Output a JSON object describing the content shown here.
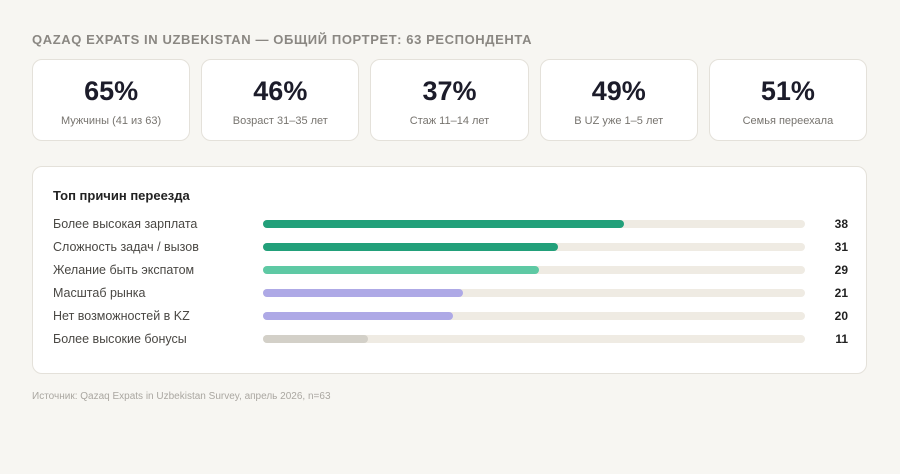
{
  "header": {
    "title": "QAZAQ EXPATS IN UZBEKISTAN — ОБЩИЙ ПОРТРЕТ: 63 РЕСПОНДЕНТА"
  },
  "stats": [
    {
      "value": "65%",
      "label": "Мужчины (41 из 63)"
    },
    {
      "value": "46%",
      "label": "Возраст 31–35 лет"
    },
    {
      "value": "37%",
      "label": "Стаж 11–14 лет"
    },
    {
      "value": "49%",
      "label": "В UZ уже 1–5 лет"
    },
    {
      "value": "51%",
      "label": "Семья переехала"
    }
  ],
  "chart_data": {
    "type": "bar",
    "orientation": "horizontal",
    "title": "Топ причин переезда",
    "categories": [
      "Более высокая зарплата",
      "Сложность задач / вызов",
      "Желание быть экспатом",
      "Масштаб рынка",
      "Нет возможностей в KZ",
      "Более высокие бонусы"
    ],
    "values": [
      38,
      31,
      29,
      21,
      20,
      11
    ],
    "value_labels": [
      "38",
      "31",
      "29",
      "21",
      "20",
      "11"
    ],
    "colors": [
      "#22a07a",
      "#22a07a",
      "#5ec9a4",
      "#aea9e6",
      "#aea9e6",
      "#d3d0c8"
    ],
    "xlim": [
      0,
      57
    ]
  },
  "footer": {
    "source": "Источник: Qazaq Expats in Uzbekistan Survey, апрель 2026, n=63"
  }
}
